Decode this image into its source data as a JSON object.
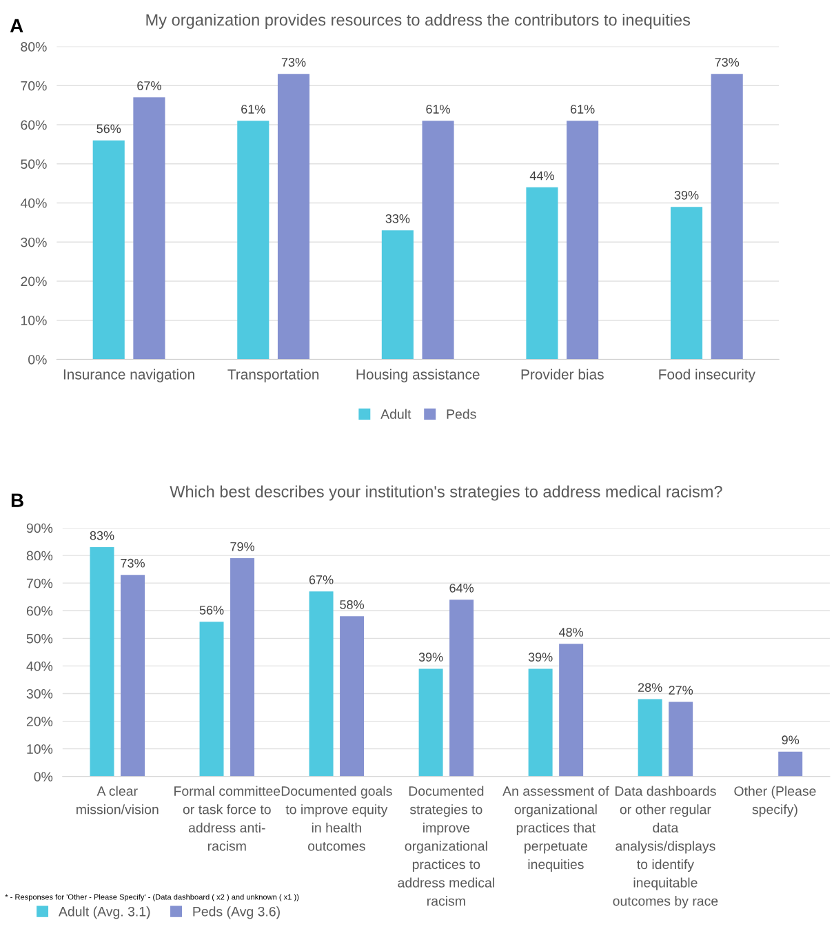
{
  "chart_data": [
    {
      "type": "bar",
      "title": "My organization provides resources to address the contributors to inequities",
      "categories": [
        "Insurance navigation",
        "Transportation",
        "Housing assistance",
        "Provider bias",
        "Food insecurity"
      ],
      "series": [
        {
          "name": "Adult",
          "color": "#4fc9e0",
          "values": [
            56,
            61,
            33,
            44,
            39
          ]
        },
        {
          "name": "Peds",
          "color": "#8491d0",
          "values": [
            67,
            73,
            61,
            61,
            73
          ]
        }
      ],
      "ylim": [
        0,
        80
      ],
      "yticks": [
        {
          "value": 0,
          "label": "0%"
        },
        {
          "value": 10,
          "label": "10%"
        },
        {
          "value": 20,
          "label": "20%"
        },
        {
          "value": 30,
          "label": "30%"
        },
        {
          "value": 40,
          "label": "40%"
        },
        {
          "value": 50,
          "label": "50%"
        },
        {
          "value": 60,
          "label": "60%"
        },
        {
          "value": 70,
          "label": "70%"
        },
        {
          "value": 80,
          "label": "80%"
        }
      ],
      "value_labels": [
        [
          "56%",
          "61%",
          "33%",
          "44%",
          "39%"
        ],
        [
          "67%",
          "73%",
          "61%",
          "61%",
          "73%"
        ]
      ],
      "grid": "y",
      "legend": "bottom",
      "annotations": [
        "A"
      ]
    },
    {
      "type": "bar",
      "title": "Which best describes your institution's strategies to address medical racism?",
      "categories": [
        "A clear\nmission/vision",
        "Formal committee\nor task force to\naddress anti-\nracism",
        "Documented goals\nto improve equity\nin health\noutcomes",
        "Documented\nstrategies to\nimprove\norganizational\npractices to\naddress medical\nracism",
        "An assessment of\norganizational\npractices that\nperpetuate\ninequities",
        "Data dashboards\nor other regular\ndata\nanalysis/displays\nto identify\ninequitable\noutcomes by race",
        "Other (Please\nspecify)"
      ],
      "series": [
        {
          "name": "Adult (Avg. 3.1)",
          "color": "#4fc9e0",
          "values": [
            83,
            56,
            67,
            39,
            39,
            28,
            null
          ]
        },
        {
          "name": "Peds (Avg 3.6)",
          "color": "#8491d0",
          "values": [
            73,
            79,
            58,
            64,
            48,
            27,
            9
          ]
        }
      ],
      "ylim": [
        0,
        90
      ],
      "yticks": [
        {
          "value": 0,
          "label": "0%"
        },
        {
          "value": 10,
          "label": "10%"
        },
        {
          "value": 20,
          "label": "20%"
        },
        {
          "value": 30,
          "label": "30%"
        },
        {
          "value": 40,
          "label": "40%"
        },
        {
          "value": 50,
          "label": "50%"
        },
        {
          "value": 60,
          "label": "60%"
        },
        {
          "value": 70,
          "label": "70%"
        },
        {
          "value": 80,
          "label": "80%"
        },
        {
          "value": 90,
          "label": "90%"
        }
      ],
      "value_labels": [
        [
          "83%",
          "56%",
          "67%",
          "39%",
          "39%",
          "28%",
          null
        ],
        [
          "73%",
          "79%",
          "58%",
          "64%",
          "48%",
          "27%",
          "9%"
        ]
      ],
      "grid": "y",
      "legend": "bottom left",
      "annotations": [
        "B",
        "* - Responses for 'Other - Please Specify' - (Data dashboard ( x2 ) and unknown ( x1 ))"
      ]
    }
  ]
}
